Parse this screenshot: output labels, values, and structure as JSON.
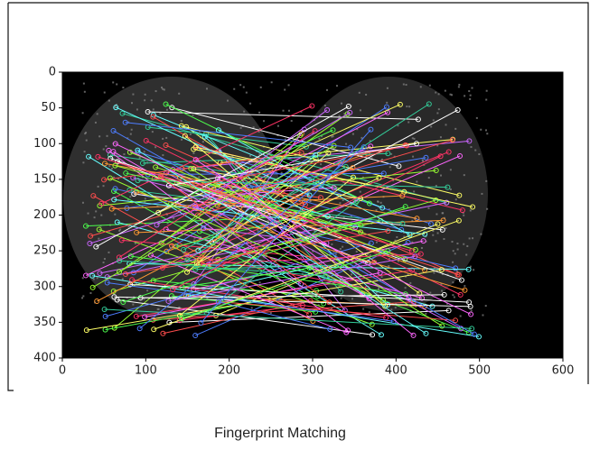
{
  "chart_data": {
    "type": "image",
    "xlim": [
      0,
      600
    ],
    "ylim": [
      400,
      0
    ],
    "xticks": [
      0,
      100,
      200,
      300,
      400,
      500,
      600
    ],
    "yticks": [
      0,
      50,
      100,
      150,
      200,
      250,
      300,
      350,
      400
    ]
  },
  "caption": "Fingerprint Matching"
}
